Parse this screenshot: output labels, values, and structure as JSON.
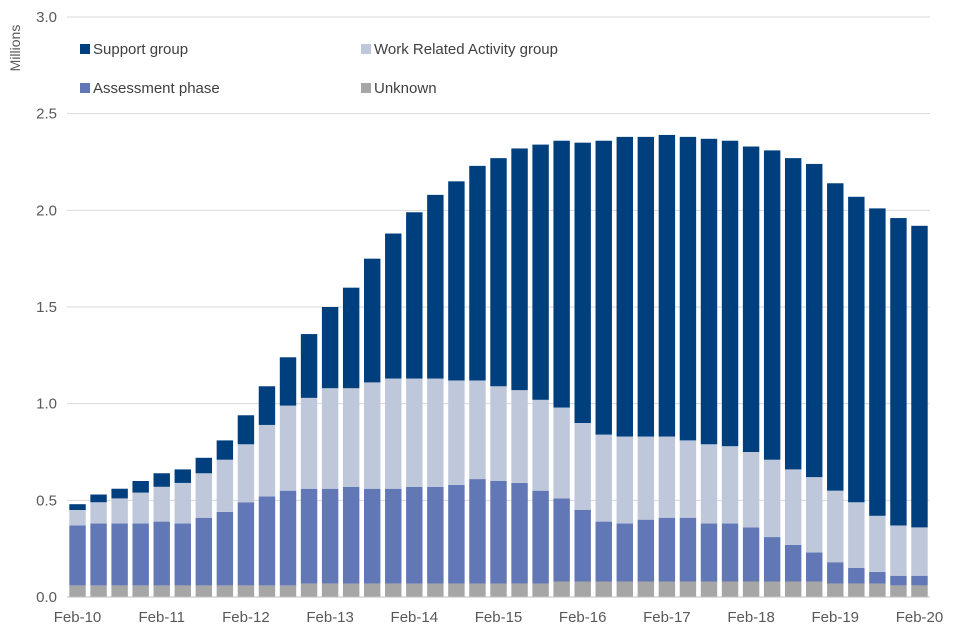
{
  "chart_data": {
    "type": "stacked-bar",
    "ylabel": "Millions",
    "xlabel": "",
    "ylim": [
      0,
      3.0
    ],
    "yticks": [
      "0.0",
      "0.5",
      "1.0",
      "1.5",
      "2.0",
      "2.5",
      "3.0"
    ],
    "ytick_values": [
      0,
      0.5,
      1.0,
      1.5,
      2.0,
      2.5,
      3.0
    ],
    "xtick_labels": [
      "Feb-10",
      "Feb-11",
      "Feb-12",
      "Feb-13",
      "Feb-14",
      "Feb-15",
      "Feb-16",
      "Feb-17",
      "Feb-18",
      "Feb-19",
      "Feb-20"
    ],
    "xtick_every": 4,
    "legend_placement": "top-left",
    "categories": [
      "Feb-10",
      "May-10",
      "Aug-10",
      "Nov-10",
      "Feb-11",
      "May-11",
      "Aug-11",
      "Nov-11",
      "Feb-12",
      "May-12",
      "Aug-12",
      "Nov-12",
      "Feb-13",
      "May-13",
      "Aug-13",
      "Nov-13",
      "Feb-14",
      "May-14",
      "Aug-14",
      "Nov-14",
      "Feb-15",
      "May-15",
      "Aug-15",
      "Nov-15",
      "Feb-16",
      "May-16",
      "Aug-16",
      "Nov-16",
      "Feb-17",
      "May-17",
      "Aug-17",
      "Nov-17",
      "Feb-18",
      "May-18",
      "Aug-18",
      "Nov-18",
      "Feb-19",
      "May-19",
      "Aug-19",
      "Nov-19",
      "Feb-20"
    ],
    "series": [
      {
        "name": "Unknown",
        "color": "#a6a6a6",
        "values": [
          0.06,
          0.06,
          0.06,
          0.06,
          0.06,
          0.06,
          0.06,
          0.06,
          0.06,
          0.06,
          0.06,
          0.07,
          0.07,
          0.07,
          0.07,
          0.07,
          0.07,
          0.07,
          0.07,
          0.07,
          0.07,
          0.07,
          0.07,
          0.08,
          0.08,
          0.08,
          0.08,
          0.08,
          0.08,
          0.08,
          0.08,
          0.08,
          0.08,
          0.08,
          0.08,
          0.08,
          0.07,
          0.07,
          0.07,
          0.06,
          0.06
        ]
      },
      {
        "name": "Assessment phase",
        "color": "#6277b5",
        "values": [
          0.31,
          0.32,
          0.32,
          0.32,
          0.33,
          0.32,
          0.35,
          0.38,
          0.43,
          0.46,
          0.49,
          0.49,
          0.49,
          0.5,
          0.49,
          0.49,
          0.5,
          0.5,
          0.51,
          0.54,
          0.53,
          0.52,
          0.48,
          0.43,
          0.37,
          0.31,
          0.3,
          0.32,
          0.33,
          0.33,
          0.3,
          0.3,
          0.28,
          0.23,
          0.19,
          0.15,
          0.11,
          0.08,
          0.06,
          0.05,
          0.05
        ]
      },
      {
        "name": "Work Related Activity group",
        "color": "#bfc8db",
        "values": [
          0.08,
          0.11,
          0.13,
          0.16,
          0.18,
          0.21,
          0.23,
          0.27,
          0.3,
          0.37,
          0.44,
          0.47,
          0.52,
          0.51,
          0.55,
          0.57,
          0.56,
          0.56,
          0.54,
          0.51,
          0.49,
          0.48,
          0.47,
          0.47,
          0.45,
          0.45,
          0.45,
          0.43,
          0.42,
          0.4,
          0.41,
          0.4,
          0.39,
          0.4,
          0.39,
          0.39,
          0.37,
          0.34,
          0.29,
          0.26,
          0.25
        ]
      },
      {
        "name": "Support group",
        "color": "#003f7d",
        "values": [
          0.03,
          0.04,
          0.05,
          0.06,
          0.07,
          0.07,
          0.08,
          0.1,
          0.15,
          0.2,
          0.25,
          0.33,
          0.42,
          0.52,
          0.64,
          0.75,
          0.86,
          0.95,
          1.03,
          1.11,
          1.18,
          1.25,
          1.32,
          1.38,
          1.45,
          1.52,
          1.55,
          1.55,
          1.56,
          1.57,
          1.58,
          1.58,
          1.58,
          1.6,
          1.61,
          1.62,
          1.59,
          1.58,
          1.59,
          1.59,
          1.56
        ]
      }
    ],
    "legend": [
      {
        "name": "Support group",
        "color": "#003f7d"
      },
      {
        "name": "Work Related Activity group",
        "color": "#bfc8db"
      },
      {
        "name": "Assessment phase",
        "color": "#6277b5"
      },
      {
        "name": "Unknown",
        "color": "#a6a6a6"
      }
    ]
  }
}
